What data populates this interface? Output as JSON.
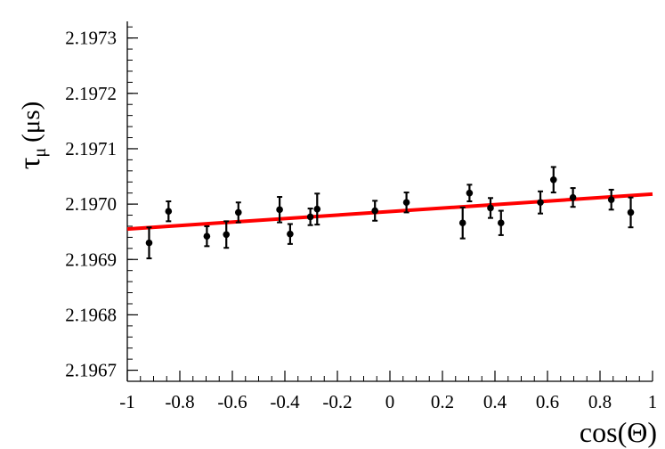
{
  "chart_data": {
    "type": "scatter",
    "xlabel": "cos(Θ)",
    "ylabel": {
      "symbol": "τ",
      "subscript": "μ",
      "unit": "(μs)"
    },
    "xlim": [
      -1,
      1
    ],
    "ylim": [
      2.19668,
      2.19733
    ],
    "xticks": [
      -1,
      -0.8,
      -0.6,
      -0.4,
      -0.2,
      0,
      0.2,
      0.4,
      0.6,
      0.8,
      1
    ],
    "xtick_labels": [
      "-1",
      "-0.8",
      "-0.6",
      "-0.4",
      "-0.2",
      "0",
      "0.2",
      "0.4",
      "0.6",
      "0.8",
      "1"
    ],
    "yticks": [
      2.1967,
      2.1968,
      2.1969,
      2.197,
      2.1971,
      2.1972,
      2.1973
    ],
    "ytick_labels": [
      "2.1967",
      "2.1968",
      "2.1969",
      "2.1970",
      "2.1971",
      "2.1972",
      "2.1973"
    ],
    "grid": false,
    "series": [
      {
        "type": "scatter",
        "points": [
          {
            "x": -0.917,
            "y": 2.19693,
            "err": 2.8e-05
          },
          {
            "x": -0.843,
            "y": 2.196987,
            "err": 1.8e-05
          },
          {
            "x": -0.697,
            "y": 2.196942,
            "err": 1.8e-05
          },
          {
            "x": -0.623,
            "y": 2.196945,
            "err": 2.4e-05
          },
          {
            "x": -0.577,
            "y": 2.196985,
            "err": 1.8e-05
          },
          {
            "x": -0.42,
            "y": 2.19699,
            "err": 2.3e-05
          },
          {
            "x": -0.38,
            "y": 2.196946,
            "err": 1.8e-05
          },
          {
            "x": -0.303,
            "y": 2.196977,
            "err": 1.5e-05
          },
          {
            "x": -0.277,
            "y": 2.196991,
            "err": 2.8e-05
          },
          {
            "x": -0.057,
            "y": 2.196988,
            "err": 1.8e-05
          },
          {
            "x": 0.063,
            "y": 2.197003,
            "err": 1.8e-05
          },
          {
            "x": 0.277,
            "y": 2.196966,
            "err": 2.8e-05
          },
          {
            "x": 0.303,
            "y": 2.19702,
            "err": 1.5e-05
          },
          {
            "x": 0.383,
            "y": 2.196993,
            "err": 1.8e-05
          },
          {
            "x": 0.423,
            "y": 2.196966,
            "err": 2.2e-05
          },
          {
            "x": 0.573,
            "y": 2.197003,
            "err": 2e-05
          },
          {
            "x": 0.623,
            "y": 2.197044,
            "err": 2.3e-05
          },
          {
            "x": 0.697,
            "y": 2.197012,
            "err": 1.7e-05
          },
          {
            "x": 0.843,
            "y": 2.197008,
            "err": 1.8e-05
          },
          {
            "x": 0.917,
            "y": 2.196985,
            "err": 2.7e-05
          }
        ],
        "color": "#000000"
      },
      {
        "type": "line",
        "x": [
          -1,
          1
        ],
        "y": [
          2.196955,
          2.197018
        ],
        "color": "#ff0000"
      }
    ]
  }
}
